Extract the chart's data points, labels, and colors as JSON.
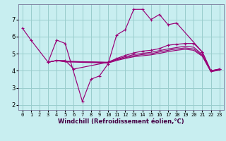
{
  "xlabel": "Windchill (Refroidissement éolien,°C)",
  "xlim": [
    -0.5,
    23.5
  ],
  "ylim": [
    1.7,
    7.9
  ],
  "yticks": [
    2,
    3,
    4,
    5,
    6,
    7
  ],
  "xticks": [
    0,
    1,
    2,
    3,
    4,
    5,
    6,
    7,
    8,
    9,
    10,
    11,
    12,
    13,
    14,
    15,
    16,
    17,
    18,
    19,
    20,
    21,
    22,
    23
  ],
  "bg_color": "#c8eef0",
  "grid_color": "#99cccc",
  "line_color": "#990077",
  "line1_x": [
    0,
    1,
    3,
    4,
    5,
    7,
    8,
    9,
    10,
    11,
    12,
    13,
    14,
    15,
    16,
    17,
    18,
    21,
    22,
    23
  ],
  "line1_y": [
    6.5,
    5.8,
    4.5,
    5.8,
    5.6,
    2.2,
    3.5,
    3.7,
    4.4,
    6.1,
    6.4,
    7.6,
    7.6,
    7.0,
    7.3,
    6.7,
    6.8,
    5.1,
    4.0,
    4.1
  ],
  "line2_x": [
    3,
    4,
    5,
    6,
    10,
    11,
    12,
    13,
    14,
    15,
    16,
    17,
    18,
    19,
    20,
    21,
    22,
    23
  ],
  "line2_y": [
    4.5,
    4.6,
    4.6,
    4.1,
    4.5,
    4.72,
    4.9,
    5.05,
    5.15,
    5.2,
    5.3,
    5.5,
    5.55,
    5.6,
    5.6,
    5.1,
    4.0,
    4.1
  ],
  "line3_x": [
    3,
    4,
    5,
    10,
    11,
    12,
    13,
    14,
    15,
    16,
    17,
    18,
    19,
    20,
    21,
    22,
    23
  ],
  "line3_y": [
    4.5,
    4.6,
    4.55,
    4.5,
    4.68,
    4.82,
    4.95,
    5.02,
    5.08,
    5.18,
    5.28,
    5.36,
    5.44,
    5.38,
    4.95,
    3.98,
    4.08
  ],
  "line4_x": [
    3,
    4,
    5,
    10,
    11,
    12,
    13,
    14,
    15,
    16,
    17,
    18,
    19,
    20,
    21,
    22,
    23
  ],
  "line4_y": [
    4.5,
    4.6,
    4.55,
    4.48,
    4.64,
    4.76,
    4.88,
    4.95,
    5.0,
    5.1,
    5.2,
    5.28,
    5.34,
    5.28,
    4.9,
    3.96,
    4.06
  ],
  "line5_x": [
    3,
    4,
    5,
    10,
    11,
    12,
    13,
    14,
    15,
    16,
    17,
    18,
    19,
    20,
    21,
    22,
    23
  ],
  "line5_y": [
    4.5,
    4.6,
    4.52,
    4.45,
    4.6,
    4.72,
    4.82,
    4.88,
    4.93,
    5.02,
    5.12,
    5.2,
    5.26,
    5.2,
    4.85,
    3.94,
    4.04
  ],
  "xlabel_fontsize": 6,
  "xlabel_color": "#440044",
  "tick_fontsize_x": 5,
  "tick_fontsize_y": 6
}
